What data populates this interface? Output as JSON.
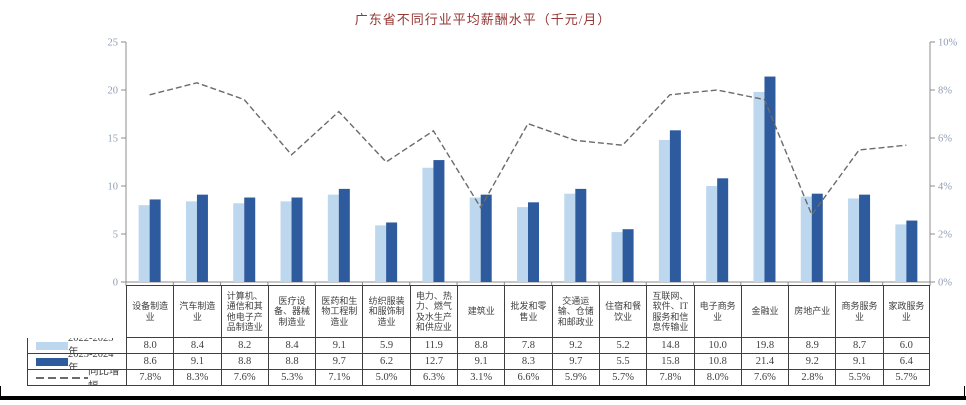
{
  "title": "广东省不同行业平均薪酬水平（千元/月）",
  "colors": {
    "title": "#953735",
    "series1": "#BDD7EE",
    "series2": "#2E5A9E",
    "growth_line": "#6B6B6B",
    "axis_label": "#8E9DB5",
    "axis_line": "#8C8C8C",
    "table_border": "#3F3F3F",
    "table_text": "#3F3F3F"
  },
  "chart_data": {
    "type": "bar",
    "title": "广东省不同行业平均薪酬水平（千元/月）",
    "categories": [
      "设备制造业",
      "汽车制造业",
      "计算机、通信和其他电子产品制造业",
      "医疗设备、器械制造业",
      "医药和生物工程制造业",
      "纺织服装和服饰制造业",
      "电力、热力、燃气及水生产和供应业",
      "建筑业",
      "批发和零售业",
      "交通运输、仓储和邮政业",
      "住宿和餐饮业",
      "互联网、软件、IT服务和信息传输业",
      "电子商务业",
      "金融业",
      "房地产业",
      "商务服务业",
      "家政服务业"
    ],
    "series": [
      {
        "name": "2022-2023年",
        "type": "bar",
        "axis": "left",
        "values": [
          8.0,
          8.4,
          8.2,
          8.4,
          9.1,
          5.9,
          11.9,
          8.8,
          7.8,
          9.2,
          5.2,
          14.8,
          10.0,
          19.8,
          8.9,
          8.7,
          6.0
        ]
      },
      {
        "name": "2023-2024年",
        "type": "bar",
        "axis": "left",
        "values": [
          8.6,
          9.1,
          8.8,
          8.8,
          9.7,
          6.2,
          12.7,
          9.1,
          8.3,
          9.7,
          5.5,
          15.8,
          10.8,
          21.4,
          9.2,
          9.1,
          6.4
        ]
      },
      {
        "name": "同比增幅",
        "type": "dashed-line",
        "axis": "right",
        "values": [
          7.8,
          8.3,
          7.6,
          5.3,
          7.1,
          5.0,
          6.3,
          3.1,
          6.6,
          5.9,
          5.7,
          7.8,
          8.0,
          7.6,
          2.8,
          5.5,
          5.7
        ]
      }
    ],
    "left_axis": {
      "min": 0,
      "max": 25,
      "step": 5,
      "ticks": [
        "0",
        "5",
        "10",
        "15",
        "20",
        "25"
      ]
    },
    "right_axis": {
      "min": 0,
      "max": 10,
      "step": 2,
      "ticks": [
        "0%",
        "2%",
        "4%",
        "6%",
        "8%",
        "10%"
      ]
    },
    "grid": false,
    "legend_position": "data-table-left"
  }
}
